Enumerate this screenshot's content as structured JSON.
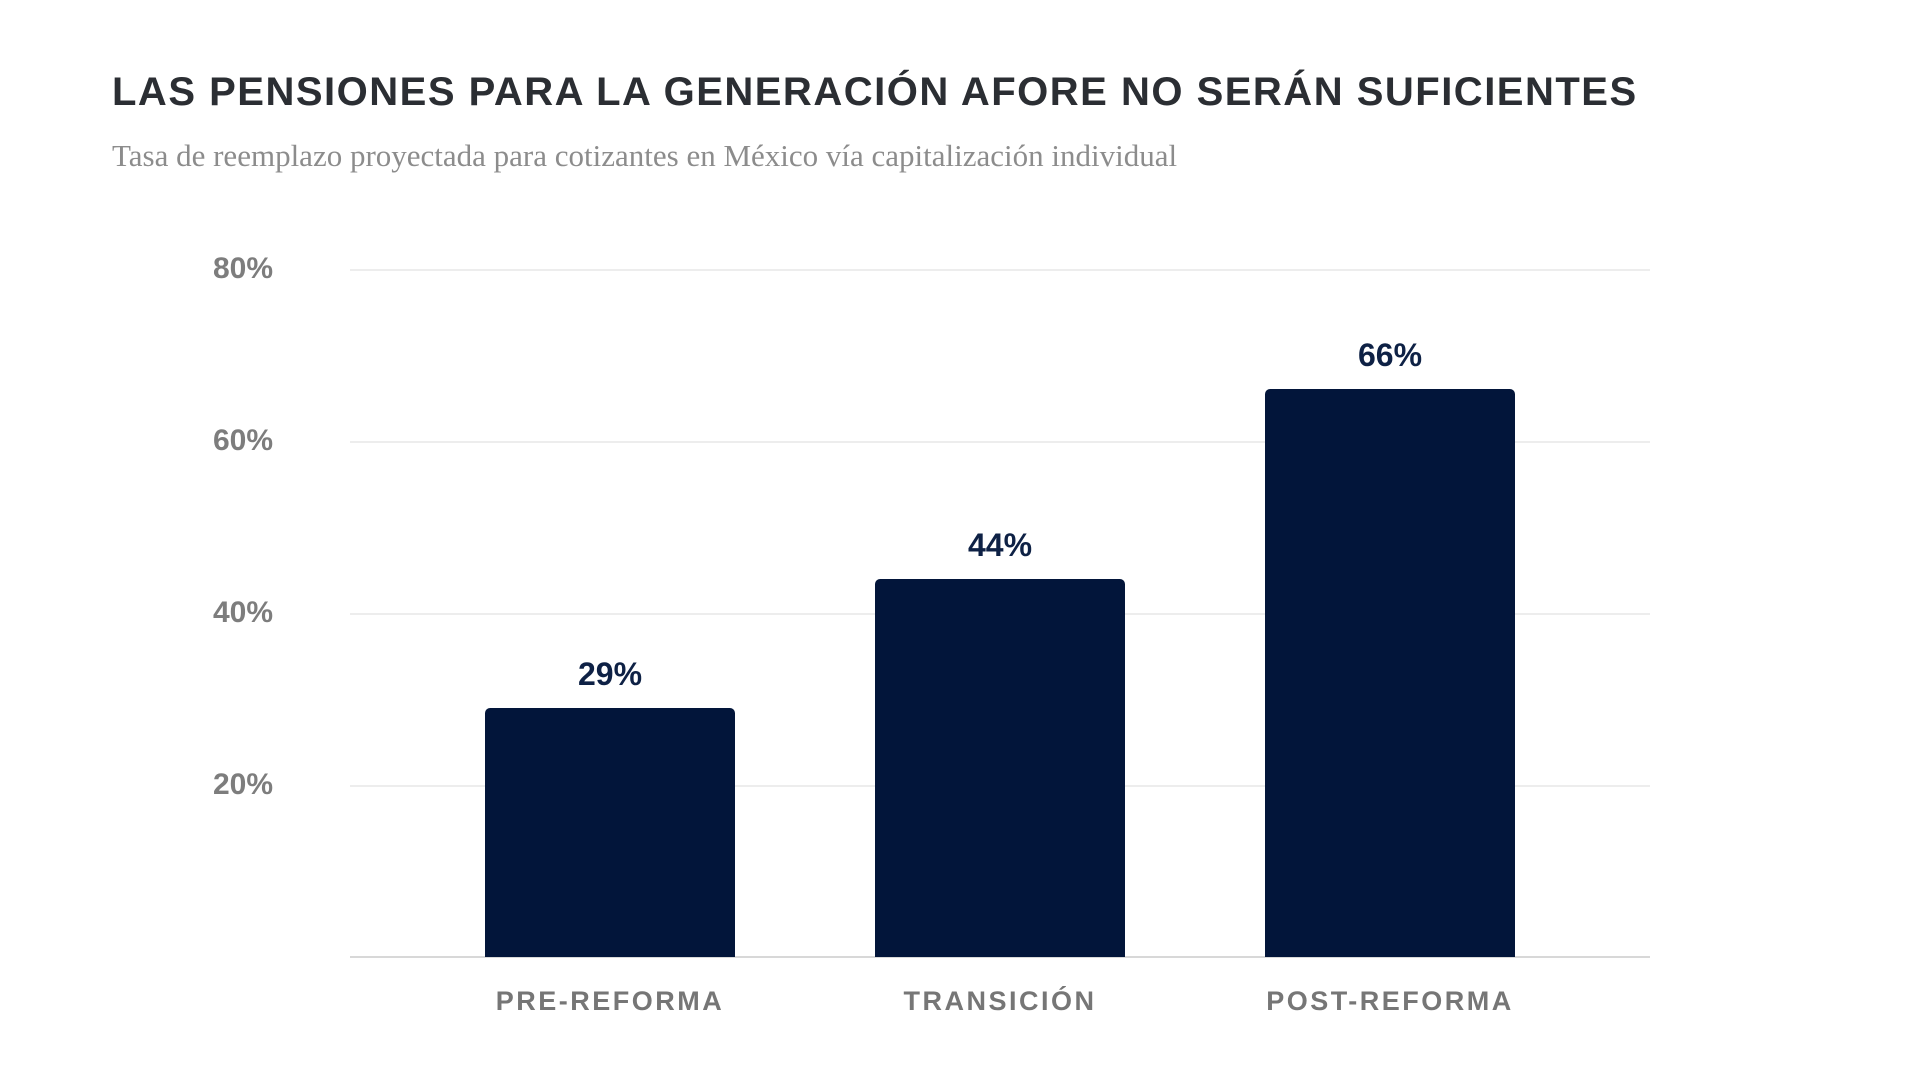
{
  "header": {
    "title": "LAS PENSIONES PARA LA GENERACIÓN AFORE NO SERÁN SUFICIENTES",
    "subtitle": "Tasa de reemplazo proyectada para cotizantes en México vía capitalización individual"
  },
  "chart_data": {
    "type": "bar",
    "title": "LAS PENSIONES PARA LA GENERACIÓN AFORE NO SERÁN SUFICIENTES",
    "subtitle": "Tasa de reemplazo proyectada para cotizantes en México vía capitalización individual",
    "categories": [
      "PRE-REFORMA",
      "TRANSICIÓN",
      "POST-REFORMA"
    ],
    "values": [
      29,
      44,
      66
    ],
    "value_labels": [
      "29%",
      "44%",
      "66%"
    ],
    "xlabel": "",
    "ylabel": "",
    "ylim": [
      0,
      80
    ],
    "y_ticks": [
      {
        "value": 80,
        "label": "80%"
      },
      {
        "value": 60,
        "label": "60%"
      },
      {
        "value": 40,
        "label": "40%"
      },
      {
        "value": 20,
        "label": "20%"
      }
    ],
    "grid": "horizontal-on",
    "legend": "none",
    "colors": {
      "background": "#ffffff",
      "bar": "#02153a",
      "value_label": "#0e2145",
      "title": "#2b2e33",
      "subtitle": "#8c8c8c",
      "axis_label": "#7d7d7d",
      "category_label": "#767676",
      "gridline": "#ededed",
      "baseline": "#d8d8d8"
    }
  }
}
